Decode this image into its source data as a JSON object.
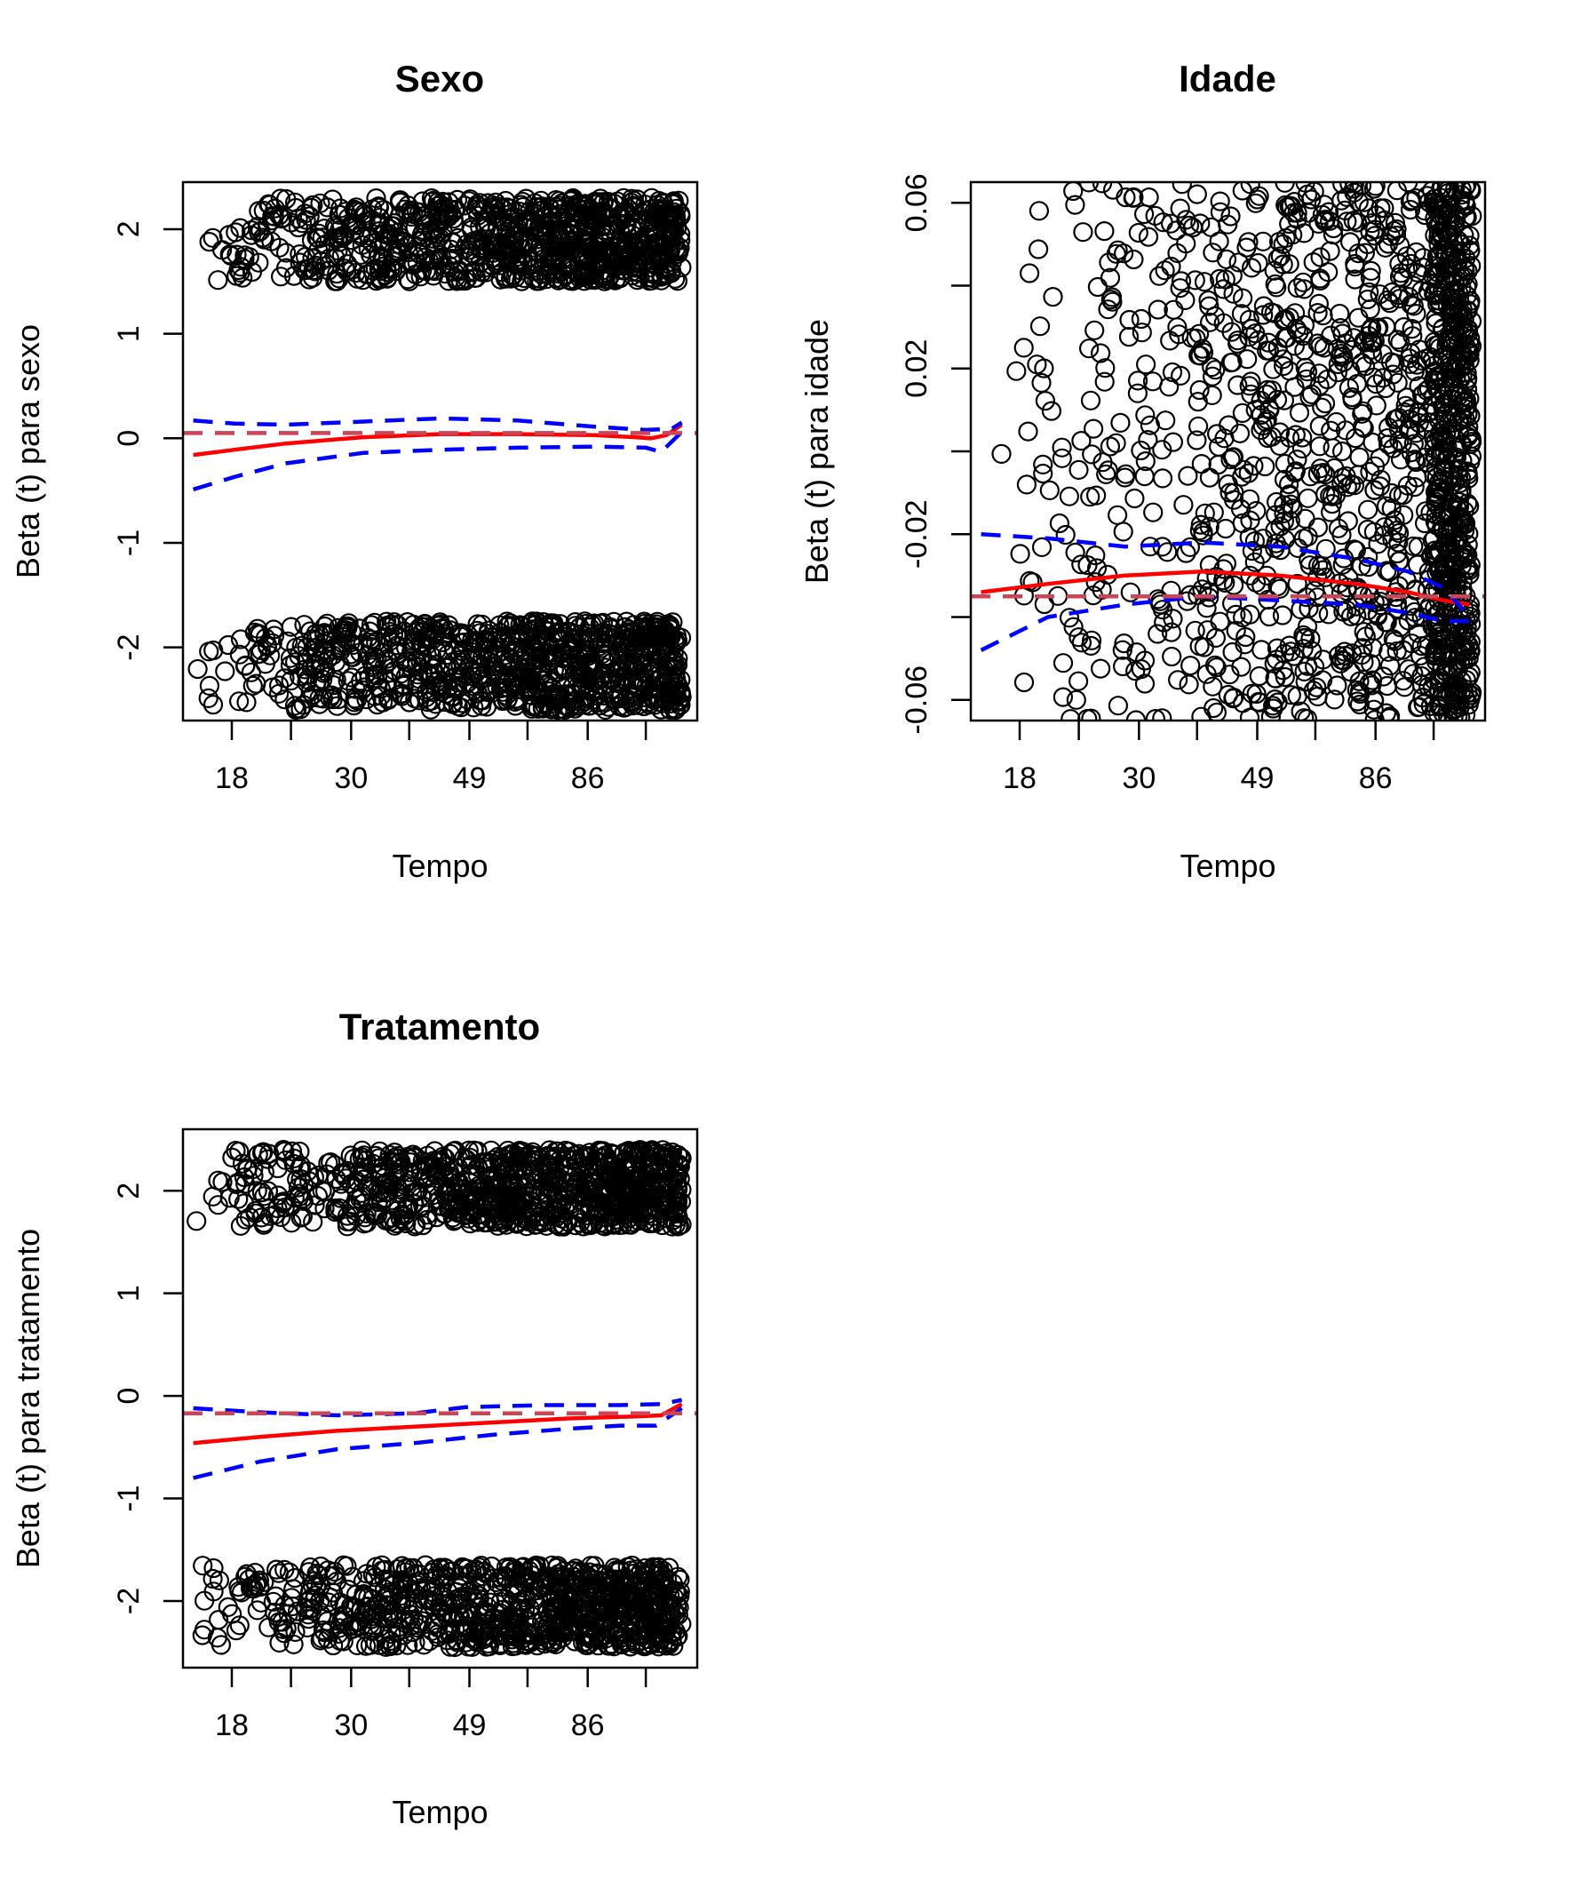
{
  "chart_data": [
    {
      "type": "scatter",
      "title": "Sexo",
      "xlabel": "Tempo",
      "ylabel": "Beta (t) para sexo",
      "xticks": [
        "18",
        "30",
        "49",
        "86"
      ],
      "yticks": [
        "-2",
        "-1",
        "0",
        "1",
        "2"
      ],
      "ylim": [
        -2.7,
        2.45
      ],
      "grid": false,
      "points": {
        "description": "two bands of open circles",
        "upper_band": [
          1.5,
          2.3
        ],
        "lower_band": [
          -2.6,
          -1.75
        ]
      },
      "series": [
        {
          "style": "solid",
          "color": "#ff0000",
          "values": [
            [
              0.02,
              -0.16
            ],
            [
              0.1,
              -0.11
            ],
            [
              0.2,
              -0.05
            ],
            [
              0.35,
              0.01
            ],
            [
              0.5,
              0.04
            ],
            [
              0.65,
              0.04
            ],
            [
              0.8,
              0.03
            ],
            [
              0.88,
              0.01
            ],
            [
              0.91,
              0.0
            ],
            [
              0.94,
              0.03
            ],
            [
              0.97,
              0.13
            ]
          ]
        },
        {
          "style": "dashed",
          "color": "#0000ff",
          "values": [
            [
              0.02,
              0.17
            ],
            [
              0.1,
              0.14
            ],
            [
              0.2,
              0.13
            ],
            [
              0.35,
              0.16
            ],
            [
              0.5,
              0.19
            ],
            [
              0.65,
              0.17
            ],
            [
              0.8,
              0.11
            ],
            [
              0.9,
              0.08
            ],
            [
              0.95,
              0.09
            ],
            [
              0.97,
              0.15
            ]
          ]
        },
        {
          "style": "dashed",
          "color": "#0000ff",
          "values": [
            [
              0.02,
              -0.49
            ],
            [
              0.1,
              -0.37
            ],
            [
              0.2,
              -0.24
            ],
            [
              0.35,
              -0.14
            ],
            [
              0.5,
              -0.11
            ],
            [
              0.65,
              -0.09
            ],
            [
              0.8,
              -0.08
            ],
            [
              0.9,
              -0.09
            ],
            [
              0.93,
              -0.13
            ],
            [
              0.97,
              0.06
            ]
          ]
        },
        {
          "style": "dashed",
          "color": "#cc4455",
          "values": [
            [
              0,
              0.05
            ],
            [
              1,
              0.05
            ]
          ]
        }
      ]
    },
    {
      "type": "scatter",
      "title": "Idade",
      "xlabel": "Tempo",
      "ylabel": "Beta (t) para idade",
      "xticks": [
        "18",
        "30",
        "49",
        "86"
      ],
      "yticks": [
        "-0.06",
        "-0.02",
        "0.02",
        "0.06"
      ],
      "ylim": [
        -0.065,
        0.065
      ],
      "grid": false,
      "points": {
        "description": "open circles scattered over the full range, dense at large times",
        "band": [
          -0.065,
          0.065
        ]
      },
      "series": [
        {
          "style": "solid",
          "color": "#ff0000",
          "values": [
            [
              0.02,
              -0.034
            ],
            [
              0.15,
              -0.032
            ],
            [
              0.3,
              -0.03
            ],
            [
              0.45,
              -0.029
            ],
            [
              0.6,
              -0.03
            ],
            [
              0.75,
              -0.032
            ],
            [
              0.85,
              -0.034
            ],
            [
              0.92,
              -0.036
            ],
            [
              0.97,
              -0.037
            ]
          ]
        },
        {
          "style": "dashed",
          "color": "#0000ff",
          "values": [
            [
              0.02,
              -0.02
            ],
            [
              0.15,
              -0.021
            ],
            [
              0.3,
              -0.023
            ],
            [
              0.45,
              -0.022
            ],
            [
              0.6,
              -0.023
            ],
            [
              0.75,
              -0.026
            ],
            [
              0.85,
              -0.029
            ],
            [
              0.92,
              -0.033
            ],
            [
              0.97,
              -0.04
            ]
          ]
        },
        {
          "style": "dashed",
          "color": "#0000ff",
          "values": [
            [
              0.02,
              -0.048
            ],
            [
              0.15,
              -0.04
            ],
            [
              0.3,
              -0.037
            ],
            [
              0.45,
              -0.035
            ],
            [
              0.6,
              -0.036
            ],
            [
              0.75,
              -0.037
            ],
            [
              0.85,
              -0.039
            ],
            [
              0.92,
              -0.041
            ],
            [
              0.97,
              -0.041
            ]
          ]
        },
        {
          "style": "dashed",
          "color": "#cc4455",
          "values": [
            [
              0,
              -0.035
            ],
            [
              1,
              -0.035
            ]
          ]
        }
      ]
    },
    {
      "type": "scatter",
      "title": "Tratamento",
      "xlabel": "Tempo",
      "ylabel": "Beta (t) para tratamento",
      "xticks": [
        "18",
        "30",
        "49",
        "86"
      ],
      "yticks": [
        "-2",
        "-1",
        "0",
        "1",
        "2"
      ],
      "ylim": [
        -2.65,
        2.6
      ],
      "grid": false,
      "points": {
        "description": "two bands of open circles",
        "upper_band": [
          1.65,
          2.4
        ],
        "lower_band": [
          -2.45,
          -1.65
        ]
      },
      "series": [
        {
          "style": "solid",
          "color": "#ff0000",
          "values": [
            [
              0.02,
              -0.46
            ],
            [
              0.15,
              -0.4
            ],
            [
              0.3,
              -0.34
            ],
            [
              0.45,
              -0.3
            ],
            [
              0.6,
              -0.26
            ],
            [
              0.75,
              -0.22
            ],
            [
              0.88,
              -0.2
            ],
            [
              0.93,
              -0.19
            ],
            [
              0.97,
              -0.08
            ]
          ]
        },
        {
          "style": "dashed",
          "color": "#0000ff",
          "values": [
            [
              0.02,
              -0.12
            ],
            [
              0.15,
              -0.16
            ],
            [
              0.3,
              -0.19
            ],
            [
              0.45,
              -0.17
            ],
            [
              0.55,
              -0.11
            ],
            [
              0.7,
              -0.09
            ],
            [
              0.85,
              -0.09
            ],
            [
              0.93,
              -0.08
            ],
            [
              0.97,
              -0.04
            ]
          ]
        },
        {
          "style": "dashed",
          "color": "#0000ff",
          "values": [
            [
              0.02,
              -0.8
            ],
            [
              0.15,
              -0.64
            ],
            [
              0.3,
              -0.52
            ],
            [
              0.45,
              -0.46
            ],
            [
              0.6,
              -0.38
            ],
            [
              0.75,
              -0.32
            ],
            [
              0.85,
              -0.29
            ],
            [
              0.92,
              -0.29
            ],
            [
              0.97,
              -0.12
            ]
          ]
        },
        {
          "style": "dashed",
          "color": "#cc4455",
          "values": [
            [
              0,
              -0.17
            ],
            [
              1,
              -0.17
            ]
          ]
        }
      ]
    }
  ]
}
